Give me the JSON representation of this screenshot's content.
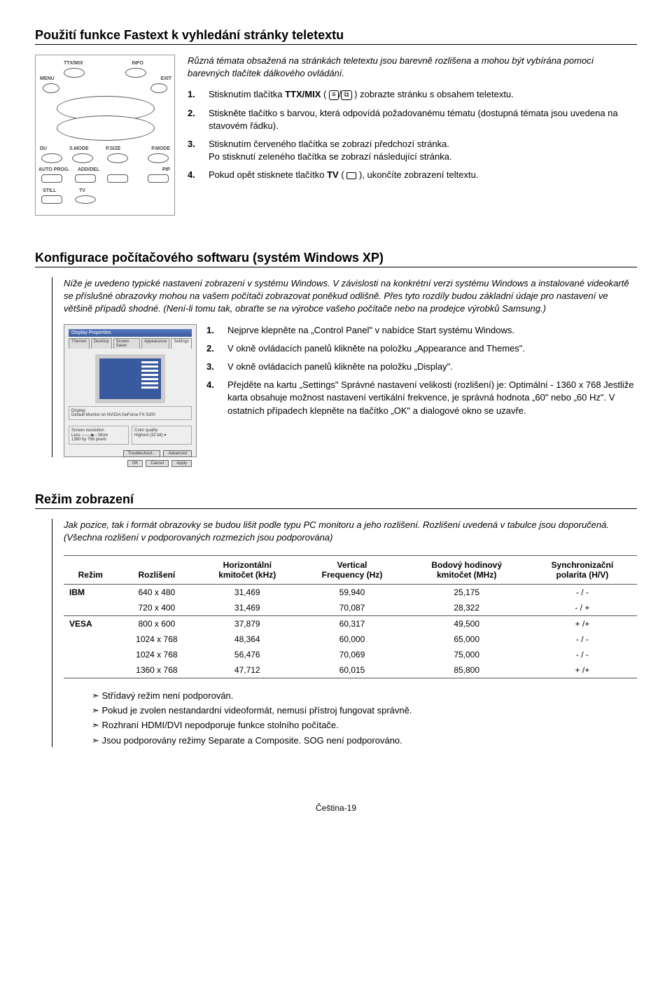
{
  "section1": {
    "title": "Použití funkce Fastext k vyhledání stránky teletextu",
    "intro": "Různá témata obsažená na stránkách teletextu jsou barevně rozlišena a mohou být vybírána pomocí barevných tlačítek dálkového ovládání.",
    "steps": [
      {
        "n": "1.",
        "text_before": "Stisknutím tlačítka ",
        "bold": "TTX/MIX",
        "text_mid": " ( ",
        "text_after": " ) zobrazte stránku s obsahem teletextu.",
        "has_icons": true
      },
      {
        "n": "2.",
        "text": "Stiskněte tlačítko s barvou, která odpovídá požadovanému tématu (dostupná témata jsou uvedena na stavovém řádku)."
      },
      {
        "n": "3.",
        "text": "Stisknutím červeného tlačítka se zobrazí předchozí stránka.\nPo stisknutí zeleného tlačítka se zobrazí následující stránka."
      },
      {
        "n": "4.",
        "text_before": "Pokud opět stisknete tlačítko ",
        "bold": "TV",
        "text_mid": " ( ",
        "text_after": " ), ukončíte zobrazení teltextu.",
        "has_icons": true,
        "single_icon": true
      }
    ],
    "remote_labels": {
      "ttxmix": "TTX/MIX",
      "info": "INFO",
      "menu": "MENU",
      "exit": "EXIT",
      "smode": "S.MODE",
      "psize": "P.SIZE",
      "pmode": "P.MODE",
      "autoprog": "AUTO PROG.",
      "adddel": "ADD/DEL",
      "pip": "PIP",
      "still": "STILL",
      "tv": "TV",
      "du": "DU"
    }
  },
  "section2": {
    "title": "Konfigurace počítačového softwaru (systém Windows XP)",
    "intro": "Níže je uvedeno typické nastavení zobrazení v systému Windows. V závislosti na konkrétní verzi systému Windows a instalované videokartě se příslušné obrazovky mohou na vašem počítači zobrazovat poněkud odlišně. Přes tyto rozdíly budou základní údaje pro nastavení ve většině případů shodné. (Není-li tomu tak, obraťte se na výrobce vašeho počítače nebo na prodejce výrobků Samsung.)",
    "dialog": {
      "title": "Display Properties",
      "tabs": [
        "Themes",
        "Desktop",
        "Screen Saver",
        "Appearance",
        "Settings"
      ],
      "display_label": "Display:",
      "display_val": "Default Monitor on NVIDIA GeForce FX 5200",
      "res_label": "Screen resolution",
      "res_less": "Less",
      "res_more": "More",
      "res_val": "1360 by 768 pixels",
      "quality_label": "Color quality",
      "quality_val": "Highest (32 bit)",
      "btn_troubleshoot": "Troubleshoot...",
      "btn_advanced": "Advanced",
      "btn_ok": "OK",
      "btn_cancel": "Cancel",
      "btn_apply": "Apply"
    },
    "steps": [
      {
        "n": "1.",
        "text": "Nejprve klepněte na „Control Panel\" v nabídce Start systému Windows."
      },
      {
        "n": "2.",
        "text": "V okně ovládacích panelů klikněte na položku „Appearance and Themes\"."
      },
      {
        "n": "3.",
        "text": "V okně ovládacích panelů klikněte na položku „Display\"."
      },
      {
        "n": "4.",
        "text": "Přejděte na kartu „Settings\" Správné nastavení velikosti (rozlišení) je: Optimální - 1360 x 768 Jestliže karta obsahuje možnost nastavení vertikální frekvence, je správná hodnota „60\" nebo „60 Hz\". V ostatních případech klepněte na tlačítko „OK\" a dialogové okno se uzavře."
      }
    ]
  },
  "section3": {
    "title": "Režim zobrazení",
    "intro": "Jak pozice, tak i formát obrazovky se budou lišit podle typu PC monitoru a jeho rozlišení. Rozlišení uvedená v tabulce jsou doporučená. (Všechna rozlišení v podporovaných rozmezích jsou podporována)",
    "table": {
      "headers": {
        "mode": "Režim",
        "res": "Rozlišení",
        "hfreq": {
          "l1": "Horizontální",
          "l2": "kmitočet (kHz)"
        },
        "vfreq": {
          "l1": "Vertical",
          "l2": "Frequency (Hz)"
        },
        "dotclk": {
          "l1": "Bodový hodinový",
          "l2": "kmitočet (MHz)"
        },
        "sync": {
          "l1": "Synchronizační",
          "l2": "polarita (H/V)"
        }
      },
      "groups": [
        {
          "mode": "IBM",
          "rows": [
            {
              "res": "640 x 480",
              "h": "31,469",
              "v": "59,940",
              "d": "25,175",
              "s": "- / -"
            },
            {
              "res": "720 x 400",
              "h": "31,469",
              "v": "70,087",
              "d": "28,322",
              "s": "- / +"
            }
          ]
        },
        {
          "mode": "VESA",
          "rows": [
            {
              "res": "800 x 600",
              "h": "37,879",
              "v": "60,317",
              "d": "49,500",
              "s": "+ /+"
            },
            {
              "res": "1024 x 768",
              "h": "48,364",
              "v": "60,000",
              "d": "65,000",
              "s": "- / -"
            },
            {
              "res": "1024 x 768",
              "h": "56,476",
              "v": "70,069",
              "d": "75,000",
              "s": "- / -"
            },
            {
              "res": "1360 x 768",
              "h": "47,712",
              "v": "60,015",
              "d": "85,800",
              "s": "+ /+"
            }
          ]
        }
      ]
    },
    "notes": [
      "Střídavý režim není podporován.",
      "Pokud je zvolen nestandardní videoformát, nemusí přístroj fungovat správně.",
      "Rozhraní HDMI/DVI nepodporuje funkce stolního počítače.",
      "Jsou podporovány režimy Separate a Composite. SOG není podporováno."
    ]
  },
  "footer": "Čeština-19"
}
